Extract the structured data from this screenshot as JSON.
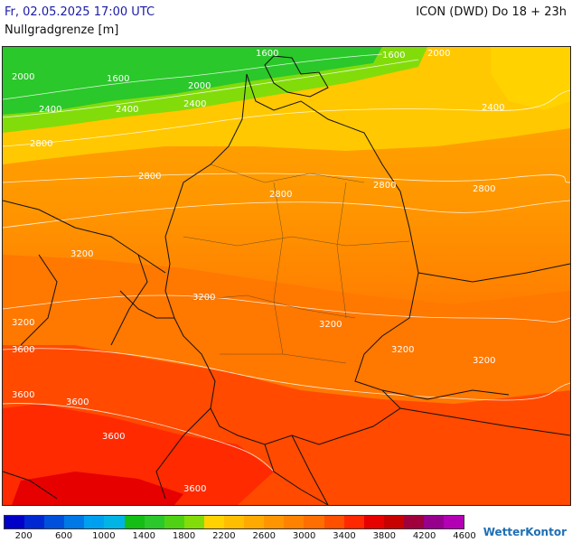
{
  "header": {
    "datetime": "Fr, 02.05.2025 17:00 UTC",
    "model": "ICON (DWD) Do 18 + 23h",
    "parameter": "Nullgradgrenze [m]"
  },
  "contour_labels": [
    "1600",
    "1600",
    "1600",
    "2000",
    "2000",
    "2000",
    "2400",
    "2400",
    "2400",
    "2400",
    "2800",
    "2800",
    "2800",
    "2800",
    "2800",
    "3200",
    "3200",
    "3200",
    "3200",
    "3200",
    "3200",
    "3600",
    "3600",
    "3600",
    "3600",
    "3600"
  ],
  "legend": {
    "colors": [
      "#0000c8",
      "#0028d2",
      "#0050dc",
      "#0078e6",
      "#00a0f0",
      "#00b4e6",
      "#14be14",
      "#2ac82a",
      "#50d214",
      "#82dc0a",
      "#ffd200",
      "#ffbe00",
      "#ffaa00",
      "#ff9600",
      "#ff8200",
      "#ff6e00",
      "#ff5000",
      "#ff2800",
      "#e60000",
      "#c80000",
      "#a0003c",
      "#96008c",
      "#b400b4"
    ],
    "tick_labels": [
      "200",
      "600",
      "1000",
      "1400",
      "1800",
      "2200",
      "2600",
      "3000",
      "3400",
      "3800",
      "4200",
      "4600"
    ]
  },
  "brand": "WetterKontor"
}
